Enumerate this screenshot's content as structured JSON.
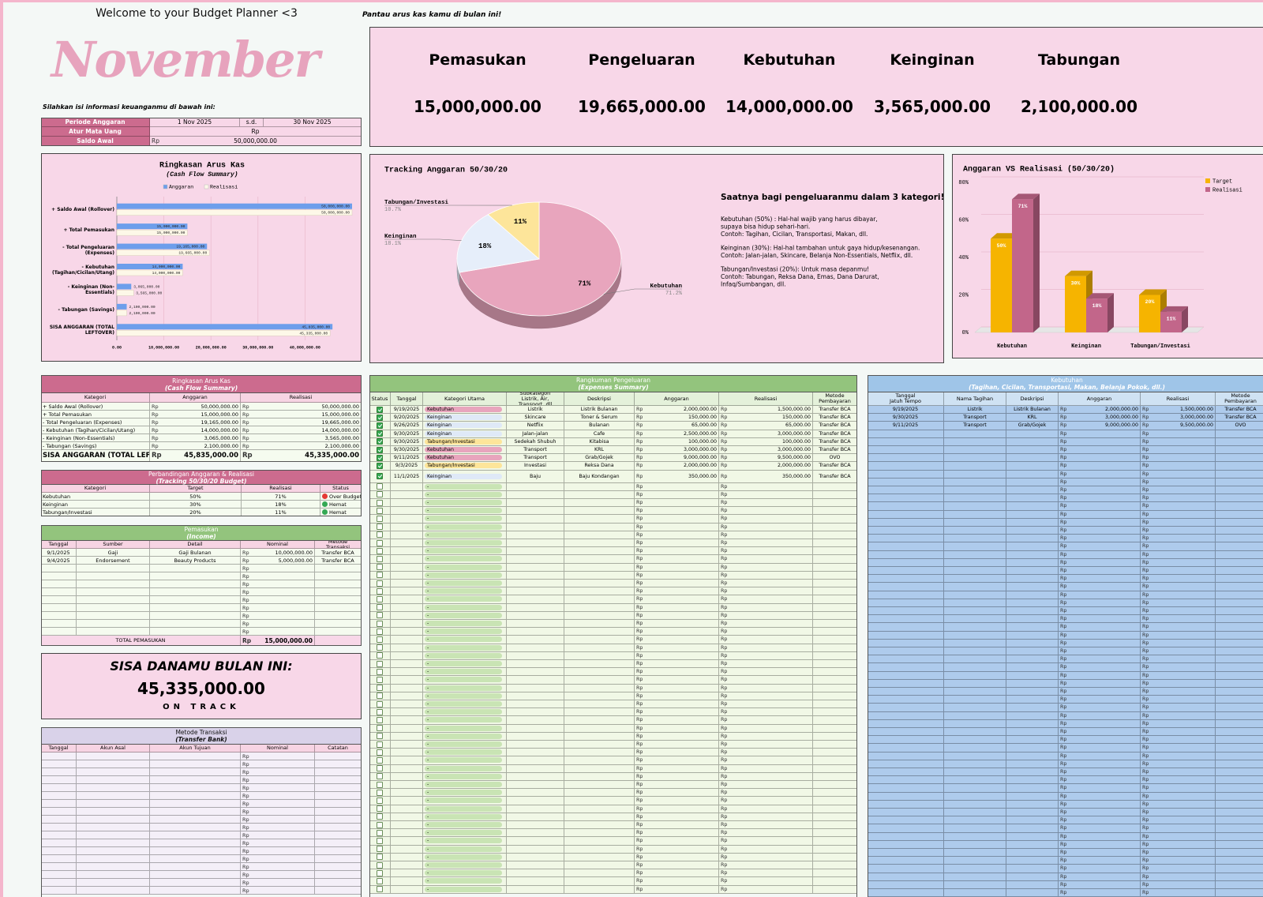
{
  "intro": {
    "welcome": "Welcome to your Budget Planner <3",
    "month": "November",
    "instruction": "Silahkan isi informasi keuanganmu di bawah ini:",
    "monitor": "Pantau arus kas kamu di bulan ini!"
  },
  "settings": {
    "rows": [
      [
        "Periode Anggaran",
        "1 Nov 2025",
        "s.d.",
        "30 Nov 2025"
      ],
      [
        "Atur Mata Uang",
        "Rp"
      ],
      [
        "Saldo Awal",
        "50,000,000.00"
      ]
    ]
  },
  "kpi": {
    "labels": [
      "Pemasukan",
      "Pengeluaran",
      "Kebutuhan",
      "Keinginan",
      "Tabungan"
    ],
    "values": [
      "15,000,000.00",
      "19,665,000.00",
      "14,000,000.00",
      "3,565,000.00",
      "2,100,000.00"
    ]
  },
  "chart_data": [
    {
      "type": "hbar",
      "title": "Ringkasan Arus Kas",
      "subtitle": "(Cash Flow Summary)",
      "categories": [
        "+ Saldo Awal (Rollover)",
        "+ Total Pemasukan",
        "- Total Pengeluaran (Expenses)",
        "- Kebutuhan (Tagihan/Cicilan/Utang)",
        "- Keinginan (Non-Essentials)",
        "- Tabungan (Savings)",
        "SISA ANGGARAN (TOTAL LEFTOVER)"
      ],
      "series": [
        {
          "name": "Anggaran",
          "color": "#6d9eeb",
          "values": [
            50000000,
            15000000,
            19165000,
            14000000,
            3065000,
            2100000,
            45835000
          ],
          "value_labels": [
            "50,000,000.00",
            "15,000,000.00",
            "19,165,000.00",
            "14,000,000.00",
            "3,065,000.00",
            "2,100,000.00",
            "45,835,000.00"
          ]
        },
        {
          "name": "Realisasi",
          "color": "#fdf8e8",
          "values": [
            50000000,
            15000000,
            19665000,
            14000000,
            3565000,
            2100000,
            45335000
          ],
          "value_labels": [
            "50,000,000.00",
            "15,000,000.00",
            "19,665,000.00",
            "14,000,000.00",
            "3,565,000.00",
            "2,100,000.00",
            "45,335,000.00"
          ]
        }
      ],
      "xlim": [
        0,
        50000000
      ],
      "xticks": [
        {
          "value": 0,
          "label": "0.00"
        },
        {
          "value": 10000000,
          "label": "10,000,000.00"
        },
        {
          "value": 20000000,
          "label": "20,000,000.00"
        },
        {
          "value": 30000000,
          "label": "30,000,000.00"
        },
        {
          "value": 40000000,
          "label": "40,000,000.00"
        }
      ],
      "grid": true
    },
    {
      "type": "pie3d",
      "title": "Tracking Anggaran 50/30/20",
      "categories": [
        "Kebutuhan",
        "Keinginan",
        "Tabungan/Investasi"
      ],
      "values": [
        71.2,
        18.1,
        10.7
      ],
      "value_labels": [
        "71%",
        "18%",
        "11%"
      ],
      "outer_labels": [
        "71.2%",
        "18.1%",
        "10.7%"
      ],
      "colors": [
        "#e8a5bd",
        "#e6eefa",
        "#fde59a"
      ]
    },
    {
      "type": "bar3d",
      "title": "Anggaran VS Realisasi (50/30/20)",
      "categories": [
        "Kebutuhan",
        "Keinginan",
        "Tabungan/Investasi"
      ],
      "series": [
        {
          "name": "Target",
          "color": "#f6b400",
          "values": [
            50,
            30,
            20
          ],
          "value_labels": [
            "50%",
            "30%",
            "20%"
          ]
        },
        {
          "name": "Realisasi",
          "color": "#c2668a",
          "values": [
            71,
            18,
            11
          ],
          "value_labels": [
            "71%",
            "18%",
            "11%"
          ]
        }
      ],
      "ylim": [
        0,
        80
      ],
      "yticks": [
        {
          "value": 0,
          "label": "0%"
        },
        {
          "value": 20,
          "label": "20%"
        },
        {
          "value": 40,
          "label": "40%"
        },
        {
          "value": 60,
          "label": "60%"
        },
        {
          "value": 80,
          "label": "80%"
        }
      ],
      "grid": true,
      "legend": "top-right"
    }
  ],
  "guide": {
    "heading": "Saatnya bagi pengeluaranmu dalam 3 kategori!",
    "paragraphs": [
      [
        "Kebutuhan (50%) : Hal-hal wajib yang harus dibayar,",
        "supaya bisa hidup sehari-hari.",
        "Contoh: Tagihan, Cicilan, Transportasi, Makan, dll."
      ],
      [
        "Keinginan (30%): Hal-hal tambahan untuk gaya hidup/kesenangan.",
        "Contoh: Jalan-jalan, Skincare, Belanja Non-Essentials, Netflix, dll."
      ],
      [
        "Tabungan/Investasi (20%): Untuk masa depanmu!",
        "Contoh: Tabungan, Reksa Dana, Emas, Dana Darurat,",
        "Infaq/Sumbangan, dll."
      ]
    ]
  },
  "cash_flow": {
    "title": "Ringkasan Arus Kas",
    "subtitle": "(Cash Flow Summary)",
    "headers": [
      "Kategori",
      "Anggaran",
      "Realisasi"
    ],
    "rows": [
      [
        "+ Saldo Awal (Rollover)",
        "50,000,000.00",
        "50,000,000.00"
      ],
      [
        "+ Total Pemasukan",
        "15,000,000.00",
        "15,000,000.00"
      ],
      [
        "- Total Pengeluaran (Expenses)",
        "19,165,000.00",
        "19,665,000.00"
      ],
      [
        "- Kebutuhan (Tagihan/Cicilan/Utang)",
        "14,000,000.00",
        "14,000,000.00"
      ],
      [
        "- Keinginan (Non-Essentials)",
        "3,065,000.00",
        "3,565,000.00"
      ],
      [
        "- Tabungan (Savings)",
        "2,100,000.00",
        "2,100,000.00"
      ]
    ],
    "total": [
      "SISA ANGGARAN (TOTAL LEFTOVER)",
      "45,835,000.00",
      "45,335,000.00"
    ]
  },
  "comparison": {
    "title": "Perbandingan Anggaran & Realisasi",
    "subtitle": "(Tracking 50/30/20 Budget)",
    "headers": [
      "Kategori",
      "Target",
      "Realisasi",
      "Status"
    ],
    "rows": [
      [
        "Kebutuhan",
        "50%",
        "71%",
        "Over Budget"
      ],
      [
        "Keinginan",
        "30%",
        "18%",
        "Hemat"
      ],
      [
        "Tabungan/Investasi",
        "20%",
        "11%",
        "Hemat"
      ]
    ],
    "status_colors": [
      "#e53935",
      "#34a853",
      "#34a853"
    ]
  },
  "income": {
    "title": "Pemasukan",
    "subtitle": "(Income)",
    "headers": [
      "Tanggal",
      "Sumber",
      "Detail",
      "Nominal",
      "Metode Transaksi"
    ],
    "rows": [
      [
        "9/1/2025",
        "Gaji",
        "Gaji Bulanan",
        "10,000,000.00",
        "Transfer BCA"
      ],
      [
        "9/4/2025",
        "Endorsement",
        "Beauty Products",
        "5,000,000.00",
        "Transfer BCA"
      ]
    ],
    "total_label": "TOTAL PEMASUKAN",
    "total": "15,000,000.00"
  },
  "remaining": {
    "title": "SISA DANAMU BULAN INI:",
    "value": "45,335,000.00",
    "status": "ON TRACK"
  },
  "transfer": {
    "title": "Metode Transaksi",
    "subtitle": "(Transfer Bank)",
    "headers": [
      "Tanggal",
      "Akun Asal",
      "Akun Tujuan",
      "Nominal",
      "Catatan"
    ]
  },
  "expenses": {
    "title": "Rangkuman Pengeluaran",
    "subtitle": "(Expenses Summary)",
    "headers": [
      "Status",
      "Tanggal",
      "Kategori Utama",
      "Subkategori\nListrik, Air, Transport, dll",
      "Deskripsi",
      "Anggaran",
      "Realisasi",
      "Metode\nPembayaran"
    ],
    "rows": [
      [
        "9/19/2025",
        "Kebutuhan",
        "Listrik",
        "Listrik Bulanan",
        "2,000,000.00",
        "1,500,000.00",
        "Transfer BCA"
      ],
      [
        "9/20/2025",
        "Keinginan",
        "Skincare",
        "Toner & Serum",
        "150,000.00",
        "150,000.00",
        "Transfer BCA"
      ],
      [
        "9/26/2025",
        "Keinginan",
        "Netflix",
        "Bulanan",
        "65,000.00",
        "65,000.00",
        "Transfer BCA"
      ],
      [
        "9/30/2025",
        "Keinginan",
        "Jalan-jalan",
        "Cafe",
        "2,500,000.00",
        "3,000,000.00",
        "Transfer BCA"
      ],
      [
        "9/30/2025",
        "Tabungan/Investasi",
        "Sedekah Shubuh",
        "Kitabisa",
        "100,000.00",
        "100,000.00",
        "Transfer BCA"
      ],
      [
        "9/30/2025",
        "Kebutuhan",
        "Transport",
        "KRL",
        "3,000,000.00",
        "3,000,000.00",
        "Transfer BCA"
      ],
      [
        "9/11/2025",
        "Kebutuhan",
        "Transport",
        "Grab/Gojek",
        "9,000,000.00",
        "9,500,000.00",
        "OVO"
      ],
      [
        "9/3/2025",
        "Tabungan/Investasi",
        "Investasi",
        "Reksa Dana",
        "2,000,000.00",
        "2,000,000.00",
        "Transfer BCA"
      ],
      [
        "11/1/2025",
        "Keinginan",
        "Baju",
        "Baju Kondangan",
        "350,000.00",
        "350,000.00",
        "Transfer BCA"
      ]
    ],
    "checked": [
      true,
      true,
      true,
      true,
      true,
      true,
      true,
      true,
      true
    ],
    "placeholder": "-",
    "pill_colors": {
      "Kebutuhan": "#e8a5bd",
      "Keinginan": "#dfe9f7",
      "Tabungan/Investasi": "#fde59a"
    }
  },
  "needs": {
    "title": "Kebutuhan",
    "subtitle": "(Tagihan, Cicilan, Transportasi, Makan, Belanja Pokok, dll.)",
    "headers": [
      "Tanggal\nJatuh Tempo",
      "Nama Tagihan",
      "Deskripsi",
      "Anggaran",
      "Realisasi",
      "Metode\nPembayaran"
    ],
    "rows": [
      [
        "9/19/2025",
        "Listrik",
        "Listrik Bulanan",
        "2,000,000.00",
        "1,500,000.00",
        "Transfer BCA"
      ],
      [
        "9/30/2025",
        "Transport",
        "KRL",
        "3,000,000.00",
        "3,000,000.00",
        "Transfer BCA"
      ],
      [
        "9/11/2025",
        "Transport",
        "Grab/Gojek",
        "9,000,000.00",
        "9,500,000.00",
        "OVO"
      ]
    ]
  }
}
